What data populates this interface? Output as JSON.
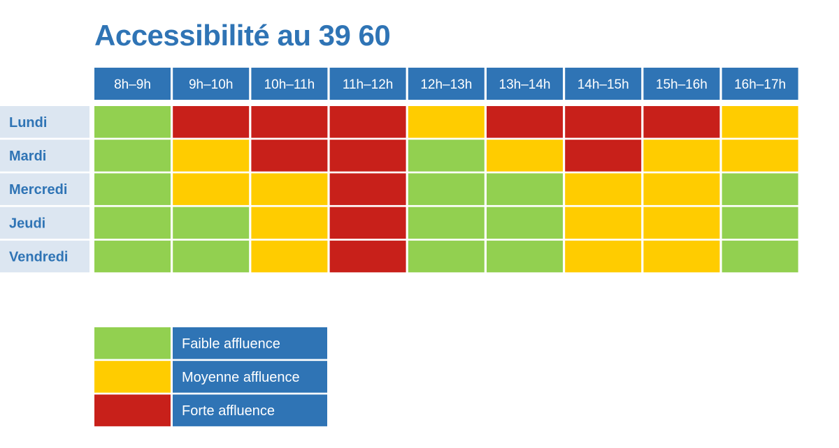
{
  "chart_data": {
    "type": "heatmap",
    "title": "Accessibilité au 39 60",
    "columns": [
      "8h–9h",
      "9h–10h",
      "10h–11h",
      "11h–12h",
      "12h–13h",
      "13h–14h",
      "14h–15h",
      "15h–16h",
      "16h–17h"
    ],
    "rows": [
      "Lundi",
      "Mardi",
      "Mercredi",
      "Jeudi",
      "Vendredi"
    ],
    "values": [
      [
        "faible",
        "forte",
        "forte",
        "forte",
        "moyenne",
        "forte",
        "forte",
        "forte",
        "moyenne"
      ],
      [
        "faible",
        "moyenne",
        "forte",
        "forte",
        "faible",
        "moyenne",
        "forte",
        "moyenne",
        "moyenne"
      ],
      [
        "faible",
        "moyenne",
        "moyenne",
        "forte",
        "faible",
        "faible",
        "moyenne",
        "moyenne",
        "faible"
      ],
      [
        "faible",
        "faible",
        "moyenne",
        "forte",
        "faible",
        "faible",
        "moyenne",
        "moyenne",
        "faible"
      ],
      [
        "faible",
        "faible",
        "moyenne",
        "forte",
        "faible",
        "faible",
        "moyenne",
        "moyenne",
        "faible"
      ]
    ],
    "legend": [
      {
        "key": "faible",
        "label": "Faible affluence",
        "color": "#92d050"
      },
      {
        "key": "moyenne",
        "label": "Moyenne affluence",
        "color": "#ffcc00"
      },
      {
        "key": "forte",
        "label": "Forte affluence",
        "color": "#c8201a"
      }
    ],
    "legend_position": "bottom-left"
  }
}
